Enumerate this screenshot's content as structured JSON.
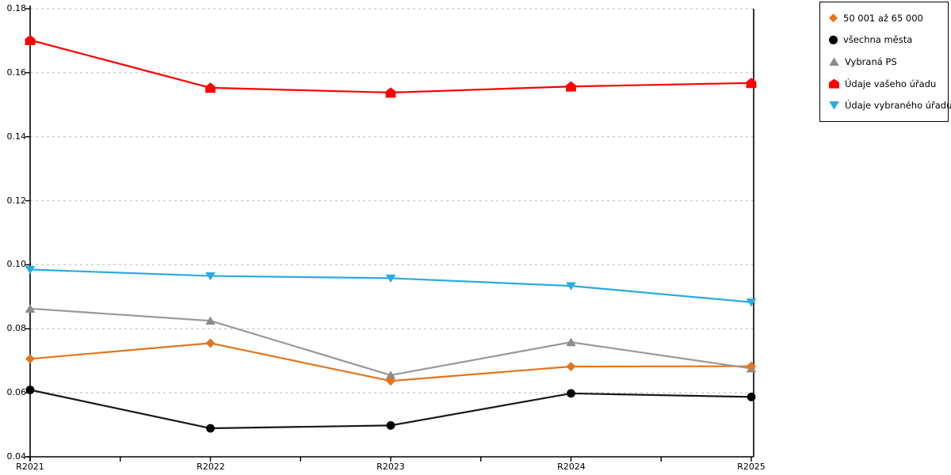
{
  "chart_data": {
    "type": "line",
    "title": "",
    "xlabel": "",
    "ylabel": "",
    "categories": [
      "R2021",
      "R2022",
      "R2023",
      "R2024",
      "R2025"
    ],
    "series": [
      {
        "name": "50 001 až 65 000",
        "marker": "diamond",
        "color": "#E2751E",
        "line_color": "#E2751E",
        "values": [
          0.0706,
          0.0755,
          0.0637,
          0.0682,
          0.0683
        ]
      },
      {
        "name": "všechna města",
        "marker": "circle",
        "color": "#000000",
        "line_color": "#1A1A1A",
        "values": [
          0.0609,
          0.0489,
          0.0498,
          0.0598,
          0.0587
        ]
      },
      {
        "name": "Vybraná PS",
        "marker": "triangle-up",
        "color": "#8C8C8C",
        "line_color": "#999999",
        "values": [
          0.0863,
          0.0825,
          0.0655,
          0.0758,
          0.0676
        ]
      },
      {
        "name": "Údaje vašeho úřadu",
        "marker": "pentagon-up",
        "color": "#FF0000",
        "line_color": "#FF0000",
        "values": [
          0.1702,
          0.1553,
          0.1538,
          0.1557,
          0.1568
        ]
      },
      {
        "name": "Údaje vybraného úřadu",
        "marker": "triangle-down",
        "color": "#29ABE2",
        "line_color": "#29ABE2",
        "values": [
          0.0985,
          0.0965,
          0.0958,
          0.0934,
          0.0883
        ]
      }
    ],
    "ylim": [
      0.04,
      0.18
    ],
    "ytick_step": 0.02,
    "ytick_labels": [
      "0.18",
      "0.16",
      "0.14",
      "0.12",
      "0.10",
      "0.08",
      "0.06",
      "0.04"
    ],
    "grid": "horizontal dashed",
    "gridline_color": "#C6C6C6",
    "axis_color": "#000000",
    "legend_position": "top-right"
  }
}
